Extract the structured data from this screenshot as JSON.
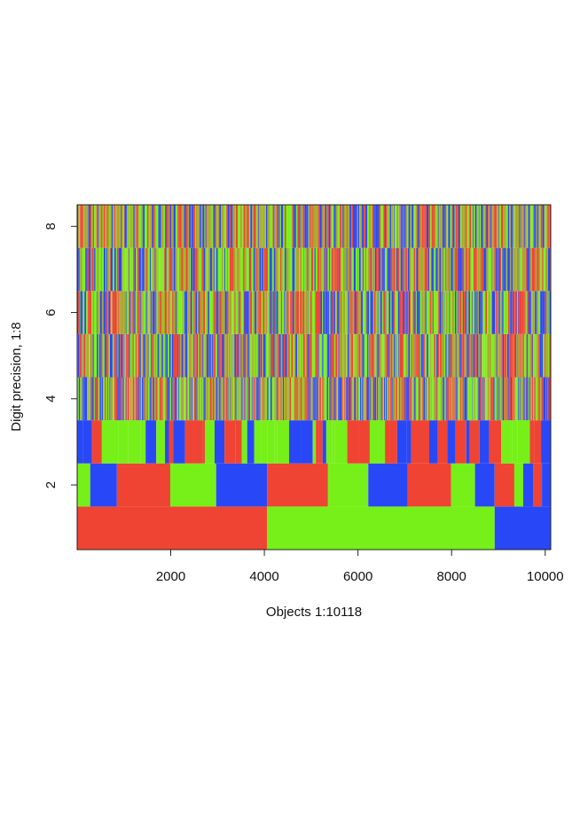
{
  "chart_data": {
    "type": "heatmap",
    "title": "",
    "xlabel": "Objects 1:10118",
    "ylabel": "Digit precision, 1:8",
    "xlim": [
      1,
      10118
    ],
    "ylim": [
      0.5,
      8.5
    ],
    "x_ticks": [
      2000,
      4000,
      6000,
      8000,
      10000
    ],
    "y_ticks": [
      2,
      4,
      6,
      8
    ],
    "grid": false,
    "legend": "none",
    "colors": {
      "red": "#ef4433",
      "green": "#76f018",
      "blue": "#2848f7",
      "olive": "#a8a62a"
    },
    "rows": [
      {
        "level": 1,
        "segments": [
          {
            "from": 1,
            "to": 4060,
            "color": "red"
          },
          {
            "from": 4060,
            "to": 8920,
            "color": "green"
          },
          {
            "from": 8920,
            "to": 10118,
            "color": "blue"
          }
        ]
      },
      {
        "level": 2,
        "segments": [
          {
            "from": 1,
            "to": 280,
            "color": "green"
          },
          {
            "from": 280,
            "to": 850,
            "color": "blue"
          },
          {
            "from": 850,
            "to": 1990,
            "color": "red"
          },
          {
            "from": 1990,
            "to": 2970,
            "color": "green"
          },
          {
            "from": 2970,
            "to": 4060,
            "color": "blue"
          },
          {
            "from": 4060,
            "to": 5360,
            "color": "red"
          },
          {
            "from": 5360,
            "to": 6220,
            "color": "green"
          },
          {
            "from": 6220,
            "to": 7060,
            "color": "blue"
          },
          {
            "from": 7060,
            "to": 7990,
            "color": "red"
          },
          {
            "from": 7990,
            "to": 8500,
            "color": "green"
          },
          {
            "from": 8500,
            "to": 8920,
            "color": "blue"
          },
          {
            "from": 8920,
            "to": 9340,
            "color": "red"
          },
          {
            "from": 9340,
            "to": 9530,
            "color": "green"
          },
          {
            "from": 9530,
            "to": 9740,
            "color": "blue"
          },
          {
            "from": 9740,
            "to": 9930,
            "color": "red"
          },
          {
            "from": 9930,
            "to": 10118,
            "color": "blue"
          }
        ]
      },
      {
        "level": 3,
        "pattern": "stripes",
        "avg_width": 160,
        "seed": 3
      },
      {
        "level": 4,
        "pattern": "fine",
        "avg_width": 18,
        "seed": 4
      },
      {
        "level": 5,
        "pattern": "fine",
        "avg_width": 22,
        "seed": 5
      },
      {
        "level": 6,
        "pattern": "fine",
        "avg_width": 24,
        "seed": 6
      },
      {
        "level": 7,
        "pattern": "fine",
        "avg_width": 26,
        "seed": 7
      },
      {
        "level": 8,
        "pattern": "fine",
        "avg_width": 24,
        "seed": 8
      }
    ]
  }
}
